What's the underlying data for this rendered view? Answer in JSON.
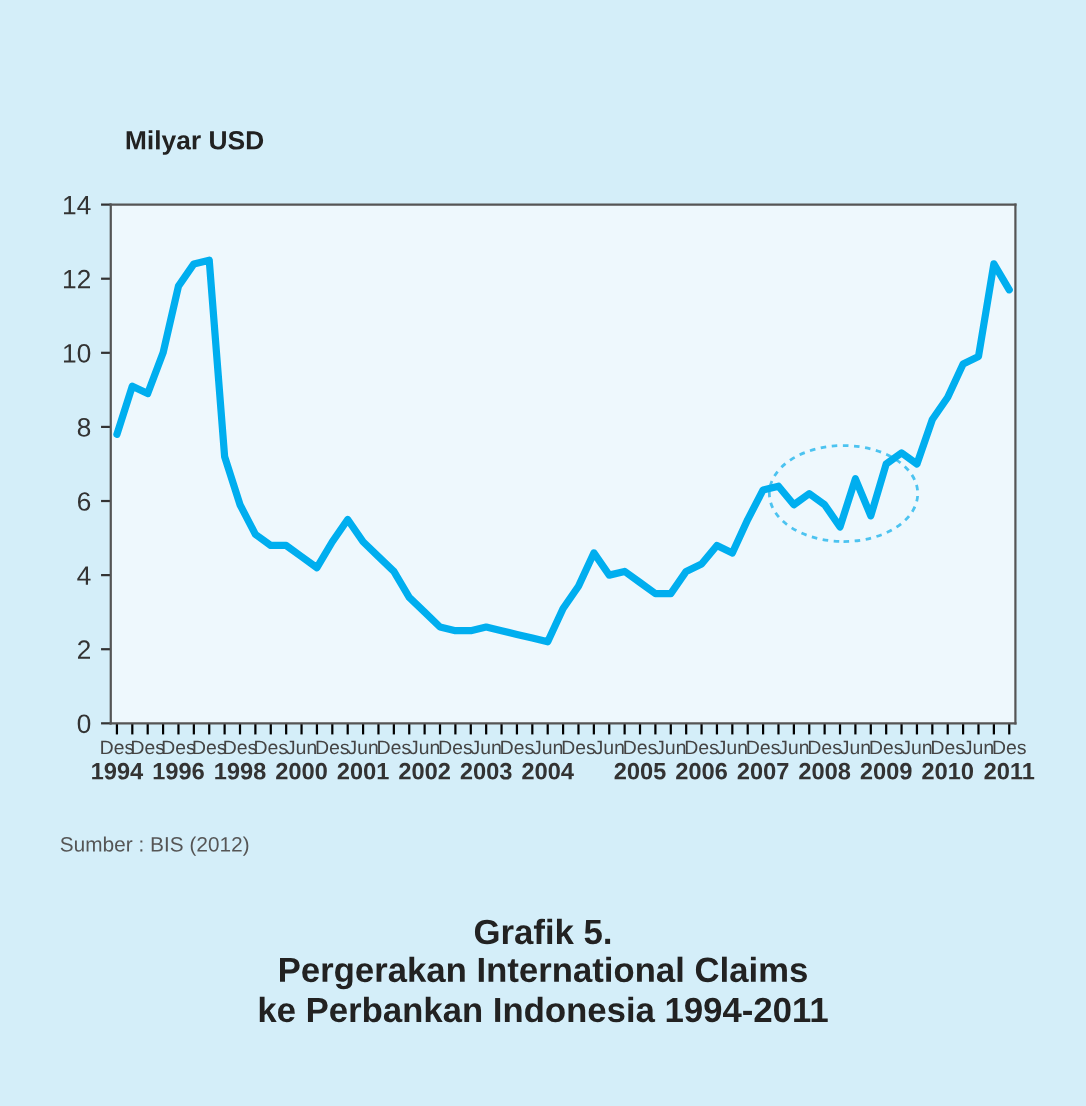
{
  "chart_data": {
    "type": "line",
    "title": "Grafik 5.",
    "subtitle": "Pergerakan International Claims\nke Perbankan Indonesia 1994-2011",
    "ylabel": "Milyar USD",
    "annotations": [
      "Sumber : BIS (2012)"
    ],
    "categories": [
      "Des\n1994",
      null,
      "Des",
      null,
      "Des\n1996",
      null,
      "Des",
      null,
      "Des\n1998",
      null,
      "Des",
      null,
      "Jun\n2000",
      null,
      "Des",
      null,
      "Jun\n2001",
      null,
      "Des",
      null,
      "Jun\n2002",
      null,
      "Des",
      null,
      "Jun\n2003",
      null,
      "Des",
      null,
      "Jun\n2004",
      null,
      "Des",
      null,
      "Jun",
      null,
      "Des\n2005",
      null,
      "Jun",
      null,
      "Des\n2006",
      null,
      "Jun",
      null,
      "Des\n2007",
      null,
      "Jun",
      null,
      "Des\n2008",
      null,
      "Jun",
      null,
      "Des\n2009",
      null,
      "Jun",
      null,
      "Des\n2010",
      null,
      "Jun",
      null,
      "Des\n2011"
    ],
    "series": [
      {
        "color": "#00aeef",
        "values": [
          7.8,
          9.1,
          8.9,
          10.0,
          11.8,
          12.4,
          12.5,
          7.2,
          5.9,
          5.1,
          4.8,
          4.8,
          4.5,
          4.2,
          4.9,
          5.5,
          4.9,
          4.5,
          4.1,
          3.4,
          3.0,
          2.6,
          2.5,
          2.5,
          2.6,
          2.5,
          2.4,
          2.3,
          2.2,
          3.1,
          3.7,
          4.6,
          4.0,
          4.1,
          3.8,
          3.5,
          3.5,
          4.1,
          4.3,
          4.8,
          4.6,
          5.5,
          6.3,
          6.4,
          5.9,
          6.2,
          5.9,
          5.3,
          6.6,
          5.6,
          7.0,
          7.3,
          7.0,
          8.2,
          8.8,
          9.7,
          9.9,
          12.4,
          11.7
        ]
      }
    ],
    "ylim": [
      0,
      14
    ],
    "yticks": [
      0,
      2,
      4,
      6,
      8,
      10,
      12,
      14
    ],
    "grid": false,
    "legend": false,
    "marker": "none",
    "line_style": "solid"
  }
}
